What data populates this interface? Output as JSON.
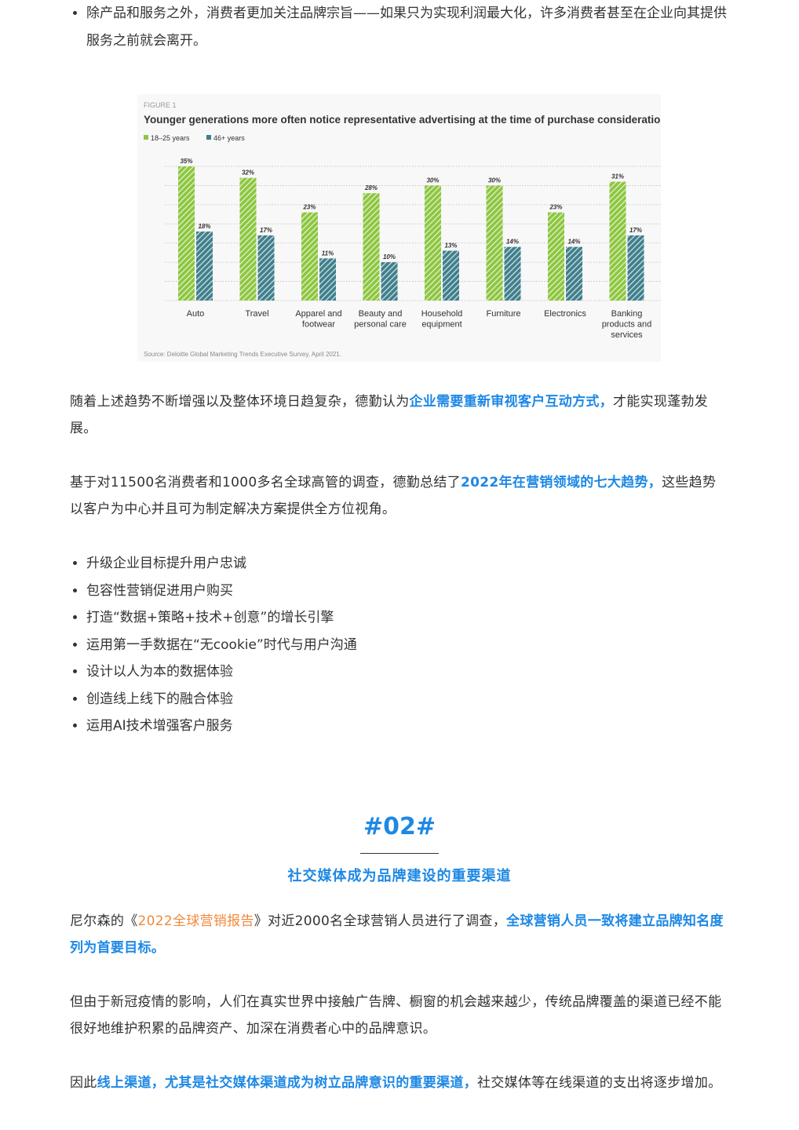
{
  "top_bullet": "除产品和服务之外，消费者更加关注品牌宗旨——如果只为实现利润最大化，许多消费者甚至在企业向其提供服务之前就会离开。",
  "chart_data": {
    "type": "bar",
    "figure_label": "FIGURE 1",
    "title": "Younger generations more often notice representative advertising at the time of purchase consideration",
    "categories": [
      "Auto",
      "Travel",
      "Apparel and footwear",
      "Beauty and personal care",
      "Household equipment",
      "Furniture",
      "Electronics",
      "Banking products and services"
    ],
    "series": [
      {
        "name": "18–25 years",
        "color": "#8dc63f",
        "values": [
          35,
          32,
          23,
          28,
          30,
          30,
          23,
          31
        ],
        "labels": [
          "35%",
          "32%",
          "23%",
          "28%",
          "30%",
          "30%",
          "23%",
          "31%"
        ]
      },
      {
        "name": "46+ years",
        "color": "#3f7f8c",
        "values": [
          18,
          17,
          11,
          10,
          13,
          14,
          14,
          17
        ],
        "labels": [
          "18%",
          "17%",
          "11%",
          "10%",
          "13%",
          "14%",
          "14%",
          "17%"
        ]
      }
    ],
    "ylim": [
      0,
      35
    ],
    "grid": true,
    "legend": "top-left",
    "source": "Source: Deloitte Global Marketing Trends Executive Survey, April 2021."
  },
  "para1": {
    "a": "随着上述趋势不断增强以及整体环境日趋复杂，德勤认为",
    "hl": "企业需要重新审视客户互动方式，",
    "b": "才能实现蓬勃发展。"
  },
  "para2": {
    "a": "基于对11500名消费者和1000多名全球高管的调查，德勤总结了",
    "hl": "2022年在营销领域的七大趋势，",
    "b": "这些趋势以客户为中心并且可为制定解决方案提供全方位视角。"
  },
  "trends": [
    "升级企业目标提升用户忠诚",
    "包容性营销促进用户购买",
    "打造“数据+策略+技术+创意”的增长引擎",
    "运用第一手数据在“无cookie”时代与用户沟通",
    "设计以人为本的数据体验",
    "创造线上线下的融合体验",
    "运用AI技术增强客户服务"
  ],
  "section": {
    "number": "#02#",
    "title": "社交媒体成为品牌建设的重要渠道"
  },
  "para3": {
    "a": "尼尔森的《",
    "link": "2022全球营销报告",
    "b": "》对近2000名全球营销人员进行了调查，",
    "hl": "全球营销人员一致将建立品牌知名度列为首要目标。"
  },
  "para4": "但由于新冠疫情的影响，人们在真实世界中接触广告牌、橱窗的机会越来越少，传统品牌覆盖的渠道已经不能很好地维护积累的品牌资产、加深在消费者心中的品牌意识。",
  "para5": {
    "a": "因此",
    "hl": "线上渠道，尤其是社交媒体渠道成为树立品牌意识的重要渠道，",
    "b": "社交媒体等在线渠道的支出将逐步增加。"
  },
  "colors": {
    "accent": "#1e88e5",
    "link": "#f08a3c"
  }
}
